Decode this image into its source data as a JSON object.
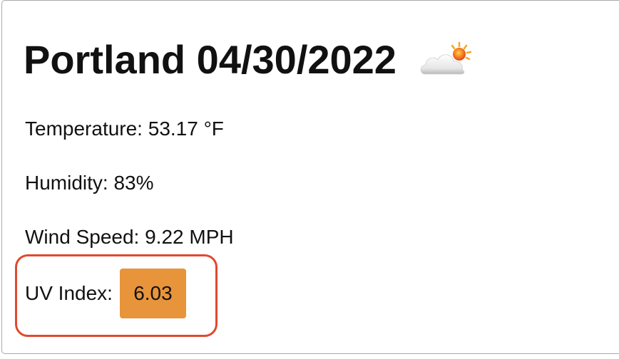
{
  "header": {
    "title": "Portland 04/30/2022",
    "weather_icon": "cloud-sun-icon"
  },
  "stats": {
    "temperature": "Temperature: 53.17 °F",
    "humidity": "Humidity: 83%",
    "wind_speed": "Wind Speed: 9.22 MPH"
  },
  "uv": {
    "label": "UV Index:",
    "value": "6.03",
    "badge_color": "#e8943a",
    "highlight_color": "#e0492e"
  }
}
